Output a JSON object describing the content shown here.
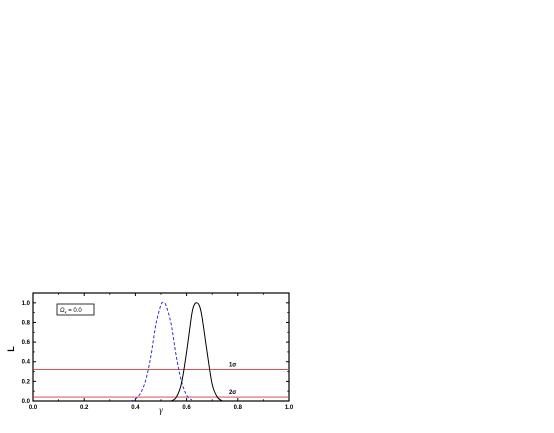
{
  "chart_data": {
    "type": "line",
    "xlabel": "γ",
    "ylabel": "L",
    "xlim": [
      0.0,
      1.0
    ],
    "ylim": [
      0.0,
      1.1
    ],
    "xticks": [
      "0.0",
      "0.2",
      "0.4",
      "0.6",
      "0.8",
      "1.0"
    ],
    "yticks": [
      "0.0",
      "0.2",
      "0.4",
      "0.6",
      "0.8",
      "1.0"
    ],
    "grid": false,
    "legend": {
      "symbol": "Ω",
      "subscript": "k",
      "value_text": " = 0.0",
      "placement": "top-left"
    },
    "series": [
      {
        "style": "dashed",
        "color": "#2f2fd0",
        "x": [
          0.38,
          0.4,
          0.42,
          0.44,
          0.46,
          0.48,
          0.5,
          0.51,
          0.52,
          0.54,
          0.56,
          0.58,
          0.6,
          0.62
        ],
        "y": [
          0.0,
          0.02,
          0.08,
          0.21,
          0.45,
          0.78,
          0.98,
          1.0,
          0.97,
          0.78,
          0.45,
          0.2,
          0.06,
          0.01
        ]
      },
      {
        "style": "solid",
        "color": "#000000",
        "x": [
          0.54,
          0.56,
          0.58,
          0.6,
          0.62,
          0.63,
          0.64,
          0.65,
          0.66,
          0.68,
          0.7,
          0.72,
          0.74
        ],
        "y": [
          0.0,
          0.04,
          0.18,
          0.5,
          0.88,
          0.98,
          1.0,
          0.97,
          0.86,
          0.5,
          0.17,
          0.04,
          0.0
        ]
      }
    ],
    "hlines": [
      {
        "y": 0.32,
        "label": "1σ",
        "color": "#d23a3a"
      },
      {
        "y": 0.04,
        "label": "2σ",
        "color": "#d23a3a"
      }
    ]
  }
}
